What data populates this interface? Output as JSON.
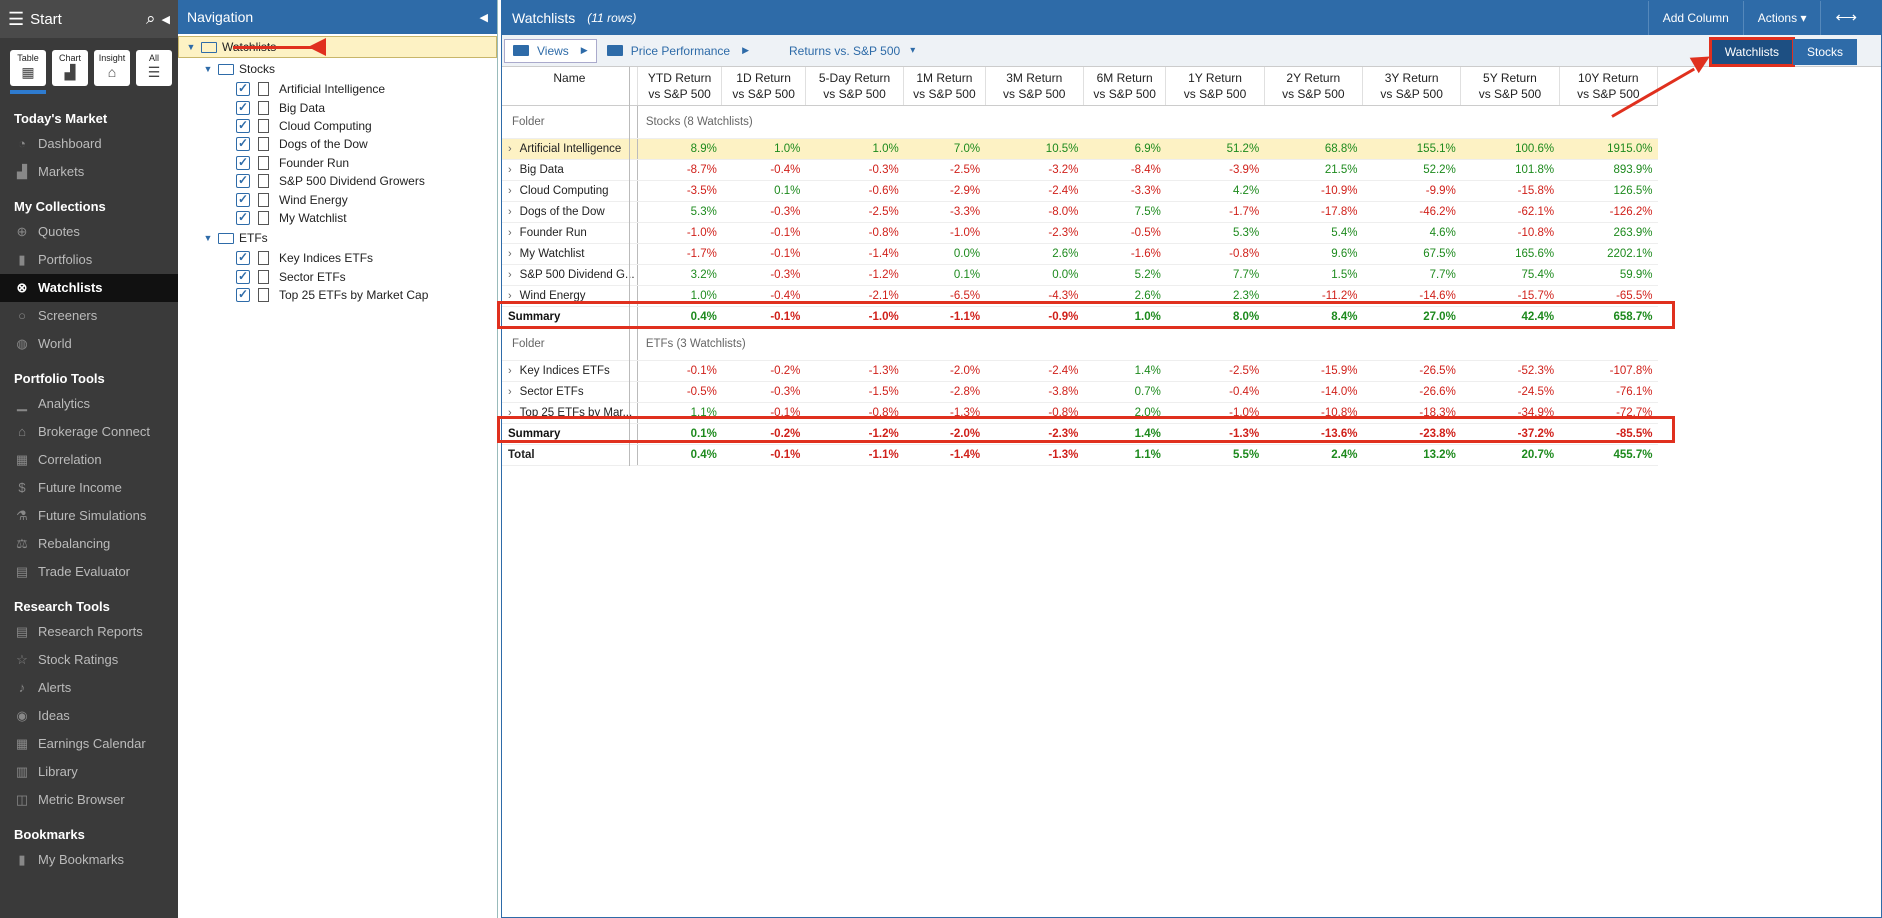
{
  "sidebar": {
    "title": "Start",
    "modes": [
      {
        "label": "Table",
        "glyph": "▦"
      },
      {
        "label": "Chart",
        "glyph": "▟"
      },
      {
        "label": "Insight",
        "glyph": "⌂"
      },
      {
        "label": "All",
        "glyph": "☰"
      }
    ],
    "sections": [
      {
        "title": "Today's Market",
        "items": [
          {
            "label": "Dashboard",
            "icon": "◔"
          },
          {
            "label": "Markets",
            "icon": "▟"
          }
        ]
      },
      {
        "title": "My Collections",
        "items": [
          {
            "label": "Quotes",
            "icon": "⊕"
          },
          {
            "label": "Portfolios",
            "icon": "▮"
          },
          {
            "label": "Watchlists",
            "icon": "⊗",
            "active": true
          },
          {
            "label": "Screeners",
            "icon": "○"
          },
          {
            "label": "World",
            "icon": "◍"
          }
        ]
      },
      {
        "title": "Portfolio Tools",
        "items": [
          {
            "label": "Analytics",
            "icon": "▁"
          },
          {
            "label": "Brokerage Connect",
            "icon": "⌂"
          },
          {
            "label": "Correlation",
            "icon": "▦"
          },
          {
            "label": "Future Income",
            "icon": "$"
          },
          {
            "label": "Future Simulations",
            "icon": "⚗"
          },
          {
            "label": "Rebalancing",
            "icon": "⚖"
          },
          {
            "label": "Trade Evaluator",
            "icon": "▤"
          }
        ]
      },
      {
        "title": "Research Tools",
        "items": [
          {
            "label": "Research Reports",
            "icon": "▤"
          },
          {
            "label": "Stock Ratings",
            "icon": "☆"
          },
          {
            "label": "Alerts",
            "icon": "♪"
          },
          {
            "label": "Ideas",
            "icon": "◉"
          },
          {
            "label": "Earnings Calendar",
            "icon": "▦"
          },
          {
            "label": "Library",
            "icon": "▥"
          },
          {
            "label": "Metric Browser",
            "icon": "◫"
          }
        ]
      },
      {
        "title": "Bookmarks",
        "items": [
          {
            "label": "My Bookmarks",
            "icon": "▮"
          }
        ]
      }
    ]
  },
  "nav": {
    "title": "Navigation",
    "root": "Watchlists",
    "groups": [
      {
        "label": "Stocks",
        "items": [
          "Artificial Intelligence",
          "Big Data",
          "Cloud Computing",
          "Dogs of the Dow",
          "Founder Run",
          "S&P 500 Dividend Growers",
          "Wind Energy",
          "My Watchlist"
        ]
      },
      {
        "label": "ETFs",
        "items": [
          "Key Indices ETFs",
          "Sector ETFs",
          "Top 25 ETFs by Market Cap"
        ]
      }
    ]
  },
  "main": {
    "title": "Watchlists",
    "rows_label": "(11 rows)",
    "add_column": "Add Column",
    "actions": "Actions",
    "expand_icon": "⟷",
    "views": "Views",
    "crumb1": "Price Performance",
    "crumb2": "Returns vs. S&P 500",
    "tabs": [
      "Watchlists",
      "Stocks"
    ],
    "columns": [
      "Name",
      "YTD Return\nvs S&P 500",
      "1D Return\nvs S&P 500",
      "5-Day Return\nvs S&P 500",
      "1M Return\nvs S&P 500",
      "3M Return\nvs S&P 500",
      "6M Return\nvs S&P 500",
      "1Y Return\nvs S&P 500",
      "2Y Return\nvs S&P 500",
      "3Y Return\nvs S&P 500",
      "5Y Return\nvs S&P 500",
      "10Y Return\nvs S&P 500"
    ],
    "groups": [
      {
        "folder_label": "Folder",
        "folder_name": "Stocks (8 Watchlists)",
        "rows": [
          {
            "name": "Artificial Intelligence",
            "vals": [
              "8.9%",
              "1.0%",
              "1.0%",
              "7.0%",
              "10.5%",
              "6.9%",
              "51.2%",
              "68.8%",
              "155.1%",
              "100.6%",
              "1915.0%"
            ],
            "hl": true
          },
          {
            "name": "Big Data",
            "vals": [
              "-8.7%",
              "-0.4%",
              "-0.3%",
              "-2.5%",
              "-3.2%",
              "-8.4%",
              "-3.9%",
              "21.5%",
              "52.2%",
              "101.8%",
              "893.9%"
            ]
          },
          {
            "name": "Cloud Computing",
            "vals": [
              "-3.5%",
              "0.1%",
              "-0.6%",
              "-2.9%",
              "-2.4%",
              "-3.3%",
              "4.2%",
              "-10.9%",
              "-9.9%",
              "-15.8%",
              "126.5%"
            ]
          },
          {
            "name": "Dogs of the Dow",
            "vals": [
              "5.3%",
              "-0.3%",
              "-2.5%",
              "-3.3%",
              "-8.0%",
              "7.5%",
              "-1.7%",
              "-17.8%",
              "-46.2%",
              "-62.1%",
              "-126.2%"
            ]
          },
          {
            "name": "Founder Run",
            "vals": [
              "-1.0%",
              "-0.1%",
              "-0.8%",
              "-1.0%",
              "-2.3%",
              "-0.5%",
              "5.3%",
              "5.4%",
              "4.6%",
              "-10.8%",
              "263.9%"
            ]
          },
          {
            "name": "My Watchlist",
            "vals": [
              "-1.7%",
              "-0.1%",
              "-1.4%",
              "0.0%",
              "2.6%",
              "-1.6%",
              "-0.8%",
              "9.6%",
              "67.5%",
              "165.6%",
              "2202.1%"
            ]
          },
          {
            "name": "S&P 500 Dividend G...",
            "vals": [
              "3.2%",
              "-0.3%",
              "-1.2%",
              "0.1%",
              "0.0%",
              "5.2%",
              "7.7%",
              "1.5%",
              "7.7%",
              "75.4%",
              "59.9%"
            ]
          },
          {
            "name": "Wind Energy",
            "vals": [
              "1.0%",
              "-0.4%",
              "-2.1%",
              "-6.5%",
              "-4.3%",
              "2.6%",
              "2.3%",
              "-11.2%",
              "-14.6%",
              "-15.7%",
              "-65.5%"
            ]
          }
        ],
        "summary": {
          "name": "Summary",
          "vals": [
            "0.4%",
            "-0.1%",
            "-1.0%",
            "-1.1%",
            "-0.9%",
            "1.0%",
            "8.0%",
            "8.4%",
            "27.0%",
            "42.4%",
            "658.7%"
          ]
        }
      },
      {
        "folder_label": "Folder",
        "folder_name": "ETFs (3 Watchlists)",
        "rows": [
          {
            "name": "Key Indices ETFs",
            "vals": [
              "-0.1%",
              "-0.2%",
              "-1.3%",
              "-2.0%",
              "-2.4%",
              "1.4%",
              "-2.5%",
              "-15.9%",
              "-26.5%",
              "-52.3%",
              "-107.8%"
            ]
          },
          {
            "name": "Sector ETFs",
            "vals": [
              "-0.5%",
              "-0.3%",
              "-1.5%",
              "-2.8%",
              "-3.8%",
              "0.7%",
              "-0.4%",
              "-14.0%",
              "-26.6%",
              "-24.5%",
              "-76.1%"
            ]
          },
          {
            "name": "Top 25 ETFs by Mar...",
            "vals": [
              "1.1%",
              "-0.1%",
              "-0.8%",
              "-1.3%",
              "-0.8%",
              "2.0%",
              "-1.0%",
              "-10.8%",
              "-18.3%",
              "-34.9%",
              "-72.7%"
            ]
          }
        ],
        "summary": {
          "name": "Summary",
          "vals": [
            "0.1%",
            "-0.2%",
            "-1.2%",
            "-2.0%",
            "-2.3%",
            "1.4%",
            "-1.3%",
            "-13.6%",
            "-23.8%",
            "-37.2%",
            "-85.5%"
          ]
        }
      }
    ],
    "total": {
      "name": "Total",
      "vals": [
        "0.4%",
        "-0.1%",
        "-1.1%",
        "-1.4%",
        "-1.3%",
        "1.1%",
        "5.5%",
        "2.4%",
        "13.2%",
        "20.7%",
        "455.7%"
      ]
    }
  },
  "colors": {
    "accent": "#2e6ba8",
    "positive": "#1d8a1d",
    "negative": "#d0201a",
    "annotation": "#e0301e",
    "highlight": "#fdf2c4"
  }
}
